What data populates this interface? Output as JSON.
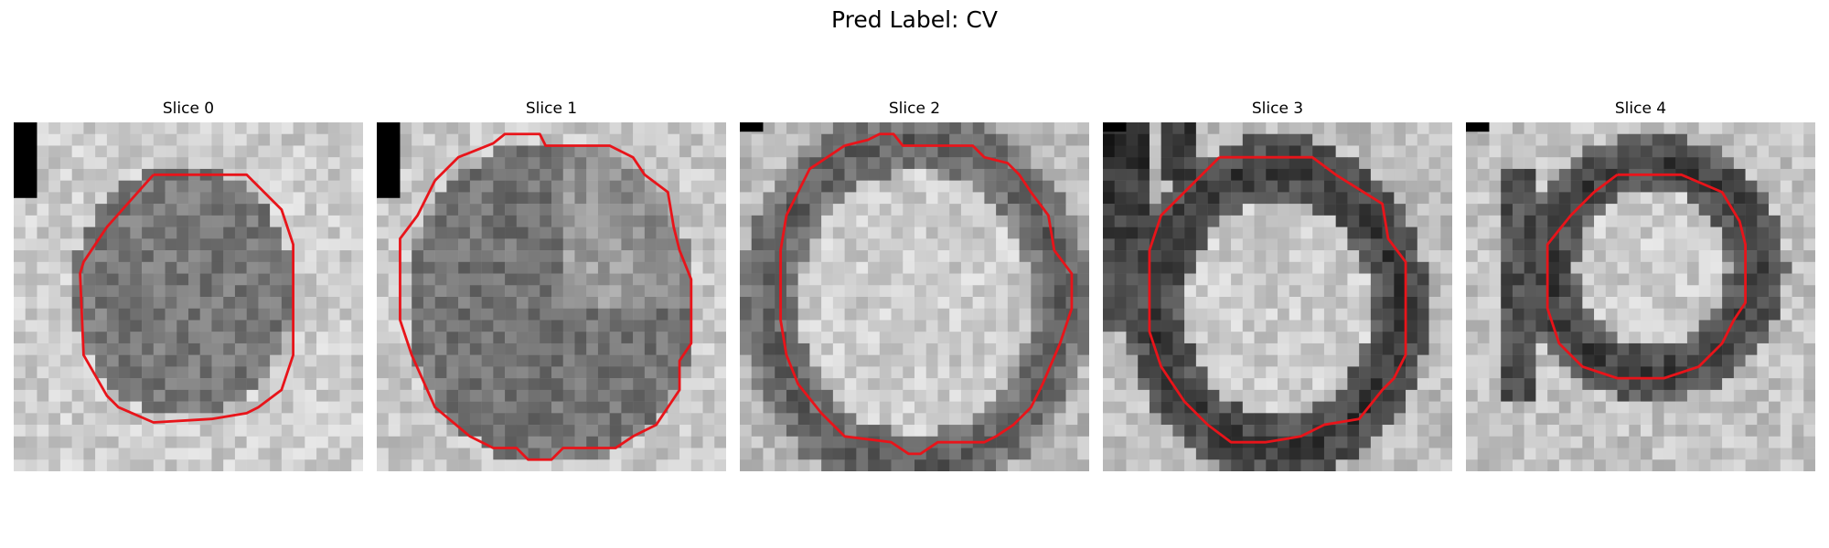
{
  "figure": {
    "suptitle": "Pred Label: CV",
    "outline_color": "#e8141a",
    "panels": [
      {
        "title": "Slice 0"
      },
      {
        "title": "Slice 1"
      },
      {
        "title": "Slice 2"
      },
      {
        "title": "Slice 3"
      },
      {
        "title": "Slice 4"
      }
    ]
  }
}
